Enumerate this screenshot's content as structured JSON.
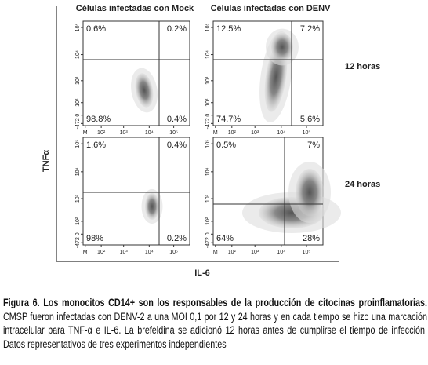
{
  "figure": {
    "column_headers": [
      "Células infectadas con Mock",
      "Células infectadas con DENV"
    ],
    "row_labels": [
      "12 horas",
      "24 horas"
    ],
    "y_axis_label": "TNFα",
    "x_axis_label": "IL-6",
    "y_ticks": [
      "10⁵",
      "10⁴",
      "10³",
      "10²",
      "0",
      "-472"
    ],
    "x_ticks": [
      "M",
      "10²",
      "10³",
      "10⁴",
      "10⁵"
    ],
    "panels": [
      {
        "quadrants": [
          "0.6%",
          "0.2%",
          "98.8%",
          "0.4%"
        ]
      },
      {
        "quadrants": [
          "12.5%",
          "7.2%",
          "74.7%",
          "5.6%"
        ]
      },
      {
        "quadrants": [
          "1.6%",
          "0.4%",
          "98%",
          "0.2%"
        ]
      },
      {
        "quadrants": [
          "0.5%",
          "7%",
          "64%",
          "28%"
        ]
      }
    ]
  },
  "caption": {
    "title": "Figura 6. Los monocitos CD14+ son los responsables de la producción de citocinas proinflamatorias.",
    "body": "CMSP fueron infectadas con DENV-2 a una MOI 0,1 por 12 y 24 horas y en cada tiempo se hizo una marcación intracelular para TNF-α e IL-6. La brefeldina se adicionó 12 horas antes de cumplirse el tiempo de infección. Datos representativos de tres experimentos independientes"
  }
}
